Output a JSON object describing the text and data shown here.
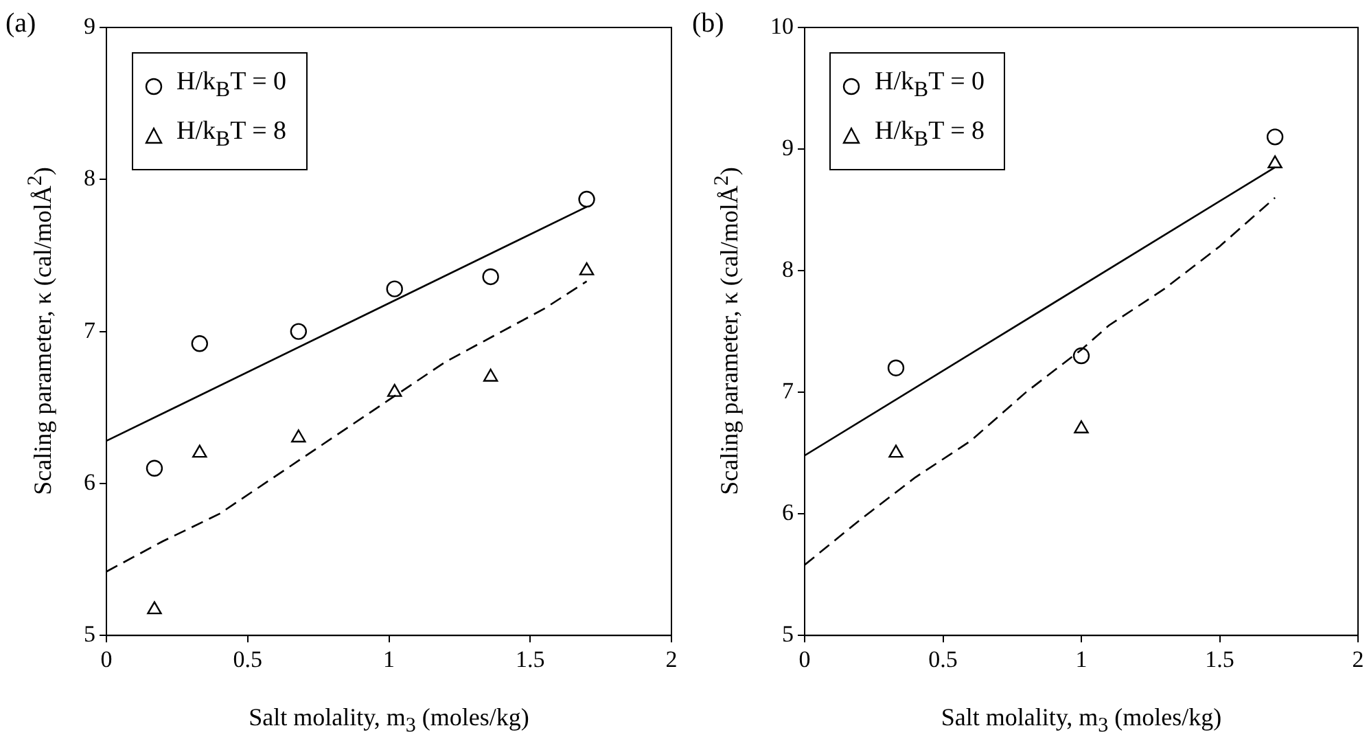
{
  "chart_data": [
    {
      "type": "scatter",
      "title": "(a)",
      "xlabel": "Salt molality, m$_{3}$ (moles/kg)",
      "ylabel": "Scaling parameter, κ (cal/molÅ$^{2}$)",
      "xlim": [
        0,
        2
      ],
      "xticks": [
        0,
        0.5,
        1,
        1.5,
        2
      ],
      "ylim": [
        5,
        9
      ],
      "yticks": [
        5,
        6,
        7,
        8,
        9
      ],
      "grid": false,
      "legend": "top left",
      "series": [
        {
          "name": "H/k$_{B}$T = 0",
          "type": "scatter",
          "marker": "circle",
          "color": "#000000",
          "x": [
            0.17,
            0.33,
            0.68,
            1.02,
            1.36,
            1.7
          ],
          "values": [
            6.1,
            6.92,
            7.0,
            7.28,
            7.36,
            7.87
          ]
        },
        {
          "name": "H/k$_{B}$T = 8",
          "type": "scatter",
          "marker": "triangle",
          "color": "#000000",
          "x": [
            0.17,
            0.33,
            0.68,
            1.02,
            1.36,
            1.7
          ],
          "values": [
            5.17,
            6.2,
            6.3,
            6.6,
            6.7,
            7.4
          ]
        },
        {
          "type": "line",
          "marker": "none",
          "line_style": "solid",
          "color": "#000000",
          "x": [
            0,
            1.7
          ],
          "values": [
            6.28,
            7.82
          ]
        },
        {
          "type": "line",
          "marker": "none",
          "line_style": "dashed",
          "color": "#000000",
          "x": [
            0,
            0.2,
            0.4,
            0.6,
            0.8,
            1.0,
            1.2,
            1.4,
            1.55,
            1.7
          ],
          "values": [
            5.42,
            5.62,
            5.8,
            6.05,
            6.3,
            6.55,
            6.8,
            7.0,
            7.15,
            7.33
          ]
        }
      ]
    },
    {
      "type": "scatter",
      "title": "(b)",
      "xlabel": "Salt molality, m$_{3}$ (moles/kg)",
      "ylabel": "Scaling parameter, κ (cal/molÅ$^{2}$)",
      "xlim": [
        0,
        2
      ],
      "xticks": [
        0,
        0.5,
        1,
        1.5,
        2
      ],
      "ylim": [
        5,
        10
      ],
      "yticks": [
        5,
        6,
        7,
        8,
        9,
        10
      ],
      "grid": false,
      "legend": "top left",
      "series": [
        {
          "name": "H/k$_{B}$T = 0",
          "type": "scatter",
          "marker": "circle",
          "color": "#000000",
          "x": [
            0.33,
            1.0,
            1.7
          ],
          "values": [
            7.2,
            7.3,
            9.1
          ]
        },
        {
          "name": "H/k$_{B}$T = 8",
          "type": "scatter",
          "marker": "triangle",
          "color": "#000000",
          "x": [
            0.33,
            1.0,
            1.7
          ],
          "values": [
            6.5,
            6.7,
            8.88
          ]
        },
        {
          "type": "line",
          "marker": "none",
          "line_style": "solid",
          "color": "#000000",
          "x": [
            0,
            1.7
          ],
          "values": [
            6.48,
            8.85
          ]
        },
        {
          "type": "line",
          "marker": "none",
          "line_style": "dashed",
          "color": "#000000",
          "x": [
            0,
            0.2,
            0.4,
            0.6,
            0.8,
            1.0,
            1.1,
            1.3,
            1.5,
            1.7
          ],
          "values": [
            5.58,
            5.95,
            6.3,
            6.6,
            7.0,
            7.35,
            7.55,
            7.85,
            8.2,
            8.6
          ]
        }
      ]
    }
  ]
}
